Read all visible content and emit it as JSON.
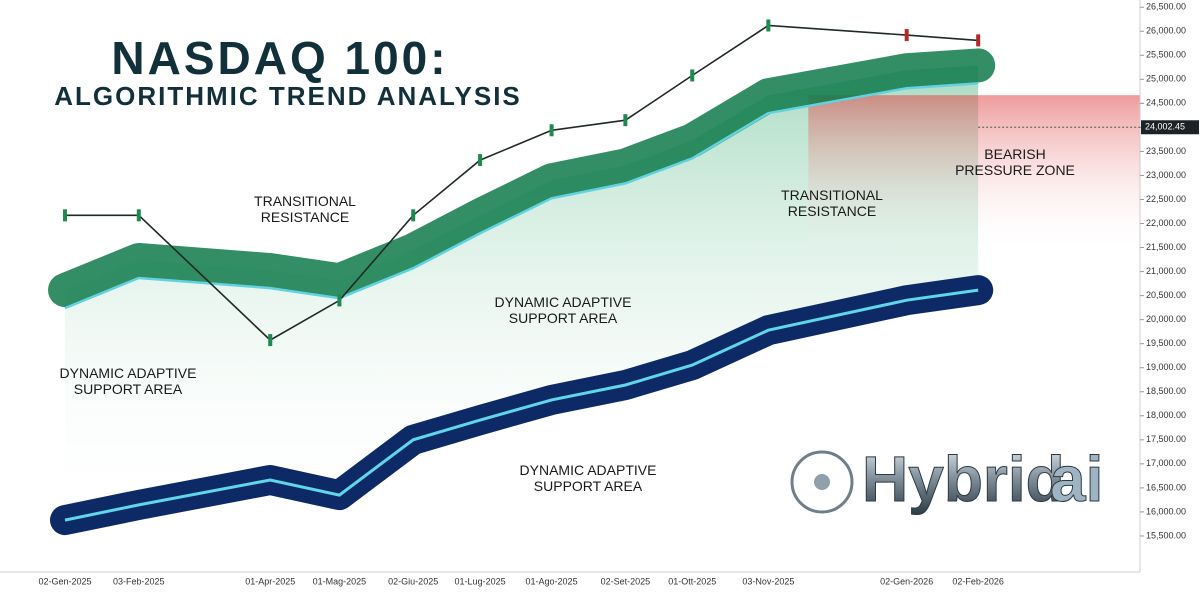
{
  "chart_data": {
    "type": "line",
    "title": "NASDAQ 100:",
    "subtitle": "ALGORITHMIC TREND ANALYSIS",
    "x": [
      "02-Gen-2025",
      "03-Feb-2025",
      "01-Apr-2025",
      "01-Mag-2025",
      "02-Giu-2025",
      "01-Lug-2025",
      "01-Ago-2025",
      "02-Set-2025",
      "01-Ott-2025",
      "03-Nov-2025",
      "02-Gen-2026",
      "02-Feb-2026"
    ],
    "series": [
      {
        "color": "#1f2a24",
        "values": [
          22170,
          22170,
          19575,
          20400,
          22170,
          23320,
          23940,
          24150,
          25080,
          26120,
          25920,
          25810
        ]
      },
      {
        "color": "#0f7a4a",
        "values": [
          20615,
          21240,
          21030,
          20820,
          21445,
          22170,
          22900,
          23210,
          23730,
          24670,
          25190,
          25290
        ]
      },
      {
        "color": "#0d2a66",
        "values": [
          15830,
          16145,
          16665,
          16350,
          17500,
          17910,
          18330,
          18640,
          19055,
          19780,
          20405,
          20615
        ]
      }
    ],
    "last_price": {
      "value": 24002.45,
      "label": "24,002.45"
    },
    "ylim": [
      14750,
      26650
    ],
    "yticks": [
      {
        "value": 15500,
        "label": "15,500.00"
      },
      {
        "value": 16000,
        "label": "16,000.00"
      },
      {
        "value": 16500,
        "label": "16,500.00"
      },
      {
        "value": 17000,
        "label": "17,000.00"
      },
      {
        "value": 17500,
        "label": "17,500.00"
      },
      {
        "value": 18000,
        "label": "18,000.00"
      },
      {
        "value": 18500,
        "label": "18,500.00"
      },
      {
        "value": 19000,
        "label": "19,000.00"
      },
      {
        "value": 19500,
        "label": "19,500.00"
      },
      {
        "value": 20000,
        "label": "20,000.00"
      },
      {
        "value": 20500,
        "label": "20,500.00"
      },
      {
        "value": 21000,
        "label": "21,000.00"
      },
      {
        "value": 21500,
        "label": "21,500.00"
      },
      {
        "value": 22000,
        "label": "22,000.00"
      },
      {
        "value": 22500,
        "label": "22,500.00"
      },
      {
        "value": 23000,
        "label": "23,000.00"
      },
      {
        "value": 23500,
        "label": "23,500.00"
      },
      {
        "value": 24000,
        "label": "24,000.00"
      },
      {
        "value": 24500,
        "label": "24,500.00"
      },
      {
        "value": 25000,
        "label": "25,000.00"
      },
      {
        "value": 25500,
        "label": "25,500.00"
      },
      {
        "value": 26000,
        "label": "26,000.00"
      },
      {
        "value": 26500,
        "label": "26,500.00"
      }
    ],
    "annotations": [
      "TRANSITIONAL\nRESISTANCE",
      "TRANSITIONAL\nRESISTANCE",
      "BEARISH\nPRESSURE ZONE",
      "DYNAMIC ADAPTIVE\nSUPPORT AREA",
      "DYNAMIC ADAPTIVE\nSUPPORT AREA",
      "DYNAMIC ADAPTIVE\nSUPPORT AREA"
    ],
    "logo": {
      "main": "Hybrid",
      "accent": "ai"
    }
  }
}
